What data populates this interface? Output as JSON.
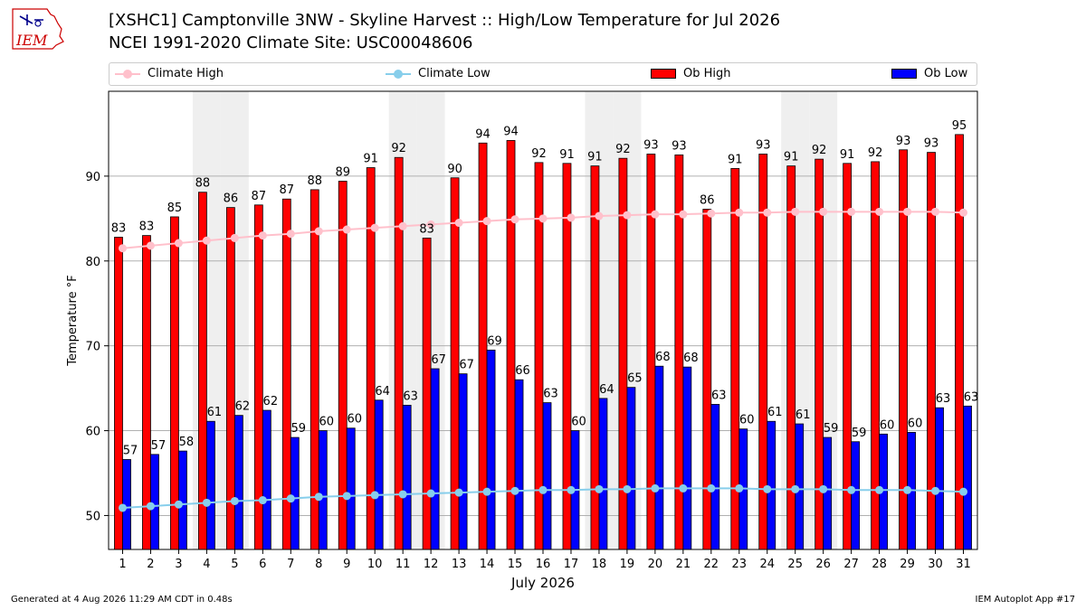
{
  "header": {
    "logo_text": "IEM",
    "title_line1": "[XSHC1] Camptonville 3NW - Skyline Harvest :: High/Low Temperature for Jul 2026",
    "title_line2": "NCEI 1991-2020 Climate Site: USC00048606"
  },
  "legend": {
    "placement": "top",
    "items": [
      {
        "label": "Climate High",
        "style": "line-marker",
        "color": "#ffc0cb"
      },
      {
        "label": "Climate Low",
        "style": "line-marker",
        "color": "#87ceeb"
      },
      {
        "label": "Ob High",
        "style": "bar",
        "color": "#ff0000"
      },
      {
        "label": "Ob Low",
        "style": "bar",
        "color": "#0000ff"
      }
    ]
  },
  "chart_data": {
    "type": "bar",
    "title": "[XSHC1] Camptonville 3NW - Skyline Harvest :: High/Low Temperature for Jul 2026",
    "xlabel": "July 2026",
    "ylabel": "Temperature °F",
    "ylim": [
      46,
      100
    ],
    "yticks": [
      50,
      60,
      70,
      80,
      90
    ],
    "grid": "horizontal",
    "categories": [
      "1",
      "2",
      "3",
      "4",
      "5",
      "6",
      "7",
      "8",
      "9",
      "10",
      "11",
      "12",
      "13",
      "14",
      "15",
      "16",
      "17",
      "18",
      "19",
      "20",
      "21",
      "22",
      "23",
      "24",
      "25",
      "26",
      "27",
      "28",
      "29",
      "30",
      "31"
    ],
    "weekend_shading_days": [
      4,
      5,
      11,
      12,
      18,
      19,
      25,
      26
    ],
    "series": [
      {
        "name": "Ob High",
        "kind": "bar",
        "color": "#ff0000",
        "values": [
          82.8,
          83.0,
          85.2,
          88.1,
          86.3,
          86.6,
          87.3,
          88.4,
          89.4,
          91.0,
          92.2,
          82.7,
          89.8,
          93.9,
          94.2,
          91.6,
          91.5,
          91.2,
          92.1,
          92.6,
          92.5,
          86.1,
          90.9,
          92.6,
          91.2,
          92.0,
          91.5,
          91.7,
          93.1,
          92.8,
          94.9
        ],
        "labels": [
          "83",
          "83",
          "85",
          "88",
          "86",
          "87",
          "87",
          "88",
          "89",
          "91",
          "92",
          "83",
          "90",
          "94",
          "94",
          "92",
          "91",
          "91",
          "92",
          "93",
          "93",
          "86",
          "91",
          "93",
          "91",
          "92",
          "91",
          "92",
          "93",
          "93",
          "95"
        ]
      },
      {
        "name": "Ob Low",
        "kind": "bar",
        "color": "#0000ff",
        "values": [
          56.6,
          57.2,
          57.6,
          61.1,
          61.8,
          62.4,
          59.2,
          60.0,
          60.3,
          63.6,
          63.0,
          67.3,
          66.7,
          69.5,
          66.0,
          63.3,
          60.0,
          63.8,
          65.1,
          67.6,
          67.5,
          63.1,
          60.2,
          61.1,
          60.8,
          59.2,
          58.7,
          59.6,
          59.8,
          62.7,
          62.9
        ],
        "labels": [
          "57",
          "57",
          "58",
          "61",
          "62",
          "62",
          "59",
          "60",
          "60",
          "64",
          "63",
          "67",
          "67",
          "69",
          "66",
          "63",
          "60",
          "64",
          "65",
          "68",
          "68",
          "63",
          "60",
          "61",
          "61",
          "59",
          "59",
          "60",
          "60",
          "63",
          "63"
        ]
      },
      {
        "name": "Climate High",
        "kind": "line",
        "color": "#ffc0cb",
        "values": [
          81.5,
          81.8,
          82.1,
          82.4,
          82.7,
          83.0,
          83.2,
          83.5,
          83.7,
          83.9,
          84.1,
          84.3,
          84.5,
          84.7,
          84.9,
          85.0,
          85.1,
          85.3,
          85.4,
          85.5,
          85.5,
          85.6,
          85.7,
          85.7,
          85.8,
          85.8,
          85.8,
          85.8,
          85.8,
          85.8,
          85.7
        ]
      },
      {
        "name": "Climate Low",
        "kind": "line",
        "color": "#87ceeb",
        "values": [
          50.9,
          51.1,
          51.3,
          51.5,
          51.7,
          51.8,
          52.0,
          52.2,
          52.3,
          52.4,
          52.5,
          52.6,
          52.7,
          52.8,
          52.9,
          53.0,
          53.0,
          53.1,
          53.1,
          53.2,
          53.2,
          53.2,
          53.2,
          53.1,
          53.1,
          53.1,
          53.0,
          53.0,
          53.0,
          52.9,
          52.8
        ]
      }
    ]
  },
  "footer": {
    "generated": "Generated at 4 Aug 2026 11:29 AM CDT in 0.48s",
    "app": "IEM Autoplot App #17"
  }
}
